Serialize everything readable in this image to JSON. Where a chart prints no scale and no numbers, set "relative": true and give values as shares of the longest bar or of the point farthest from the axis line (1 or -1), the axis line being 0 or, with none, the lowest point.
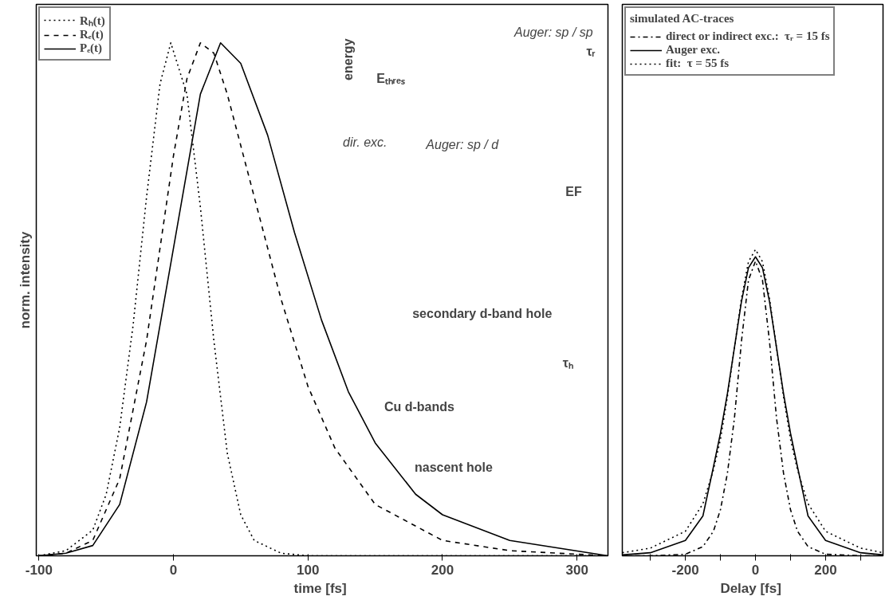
{
  "chart_data": [
    {
      "type": "line",
      "xlabel": "time  [fs]",
      "ylabel": "norm. intensity",
      "relative": true,
      "xlim": [
        -102,
        323
      ],
      "xticks": [
        -100,
        0,
        100,
        200,
        300
      ],
      "tick_labels": "x",
      "grid": false,
      "legend": "top left",
      "series": [
        {
          "name": "Rₕ(t)",
          "color": "#000000",
          "line_style": "dotted",
          "x": [
            -100,
            -80,
            -60,
            -50,
            -40,
            -30,
            -20,
            -10,
            -2,
            10,
            20,
            30,
            40,
            50,
            60,
            80,
            100,
            150,
            200,
            323
          ],
          "values": [
            0.0,
            0.01,
            0.05,
            0.12,
            0.25,
            0.45,
            0.7,
            0.92,
            1.0,
            0.9,
            0.68,
            0.42,
            0.2,
            0.08,
            0.03,
            0.005,
            0.0,
            0.0,
            0.0,
            0.0
          ]
        },
        {
          "name": "Rₑ(t)",
          "color": "#000000",
          "line_style": "dashed",
          "x": [
            -100,
            -80,
            -60,
            -40,
            -20,
            0,
            10,
            20,
            30,
            40,
            60,
            80,
            100,
            120,
            150,
            200,
            250,
            323
          ],
          "values": [
            0.0,
            0.005,
            0.03,
            0.15,
            0.42,
            0.78,
            0.93,
            1.0,
            0.98,
            0.9,
            0.7,
            0.5,
            0.33,
            0.21,
            0.1,
            0.03,
            0.01,
            0.0
          ]
        },
        {
          "name": "Pₑ(t)",
          "color": "#000000",
          "line_style": "solid",
          "x": [
            -100,
            -80,
            -60,
            -40,
            -20,
            0,
            20,
            35,
            50,
            70,
            90,
            110,
            130,
            150,
            180,
            200,
            250,
            323
          ],
          "values": [
            0.0,
            0.005,
            0.02,
            0.1,
            0.3,
            0.6,
            0.9,
            1.0,
            0.96,
            0.82,
            0.63,
            0.46,
            0.32,
            0.22,
            0.12,
            0.08,
            0.03,
            0.0
          ]
        }
      ],
      "annotations": [
        "energy",
        "Eₜₕᵣₑₛ",
        "EF",
        "dir. exc.",
        "Auger: sp / d",
        "Auger: sp / sp",
        "τᵣ",
        "secondary d-band hole",
        "τₕ",
        "Cu d-bands",
        "nascent hole"
      ]
    },
    {
      "type": "line",
      "xlabel": "Delay  [fs]",
      "relative": true,
      "xlim": [
        -380,
        364
      ],
      "xticks": [
        {
          "value": -300,
          "label": null
        },
        -200,
        {
          "value": -100,
          "label": null
        },
        0,
        {
          "value": 100,
          "label": null
        },
        200,
        {
          "value": 300,
          "label": null
        }
      ],
      "tick_labels": "x",
      "grid": false,
      "legend": "top left",
      "legend_title": "simulated AC-traces",
      "x": [
        -380,
        -300,
        -200,
        -150,
        -120,
        -100,
        -80,
        -60,
        -40,
        -20,
        0,
        20,
        40,
        60,
        80,
        100,
        120,
        150,
        200,
        300,
        364
      ],
      "series": [
        {
          "name": "direct or indirect exc.:  τᵣ = 15 fs",
          "color": "#000000",
          "line_style": "dashdot",
          "values": [
            0.0,
            0.0,
            0.005,
            0.03,
            0.08,
            0.15,
            0.27,
            0.45,
            0.7,
            0.9,
            0.962,
            0.9,
            0.7,
            0.45,
            0.27,
            0.15,
            0.08,
            0.03,
            0.005,
            0.0,
            0.0
          ]
        },
        {
          "name": "Auger exc.",
          "color": "#000000",
          "line_style": "solid",
          "values": [
            0.003,
            0.01,
            0.05,
            0.13,
            0.29,
            0.4,
            0.53,
            0.68,
            0.83,
            0.94,
            0.976,
            0.94,
            0.83,
            0.68,
            0.53,
            0.4,
            0.29,
            0.13,
            0.05,
            0.01,
            0.003
          ]
        },
        {
          "name": "fit:  τ = 55 fs",
          "color": "#000000",
          "line_style": "dotted",
          "values": [
            0.01,
            0.025,
            0.08,
            0.17,
            0.28,
            0.38,
            0.52,
            0.68,
            0.84,
            0.96,
            1.0,
            0.96,
            0.84,
            0.68,
            0.52,
            0.38,
            0.28,
            0.17,
            0.08,
            0.025,
            0.01
          ]
        }
      ]
    }
  ]
}
